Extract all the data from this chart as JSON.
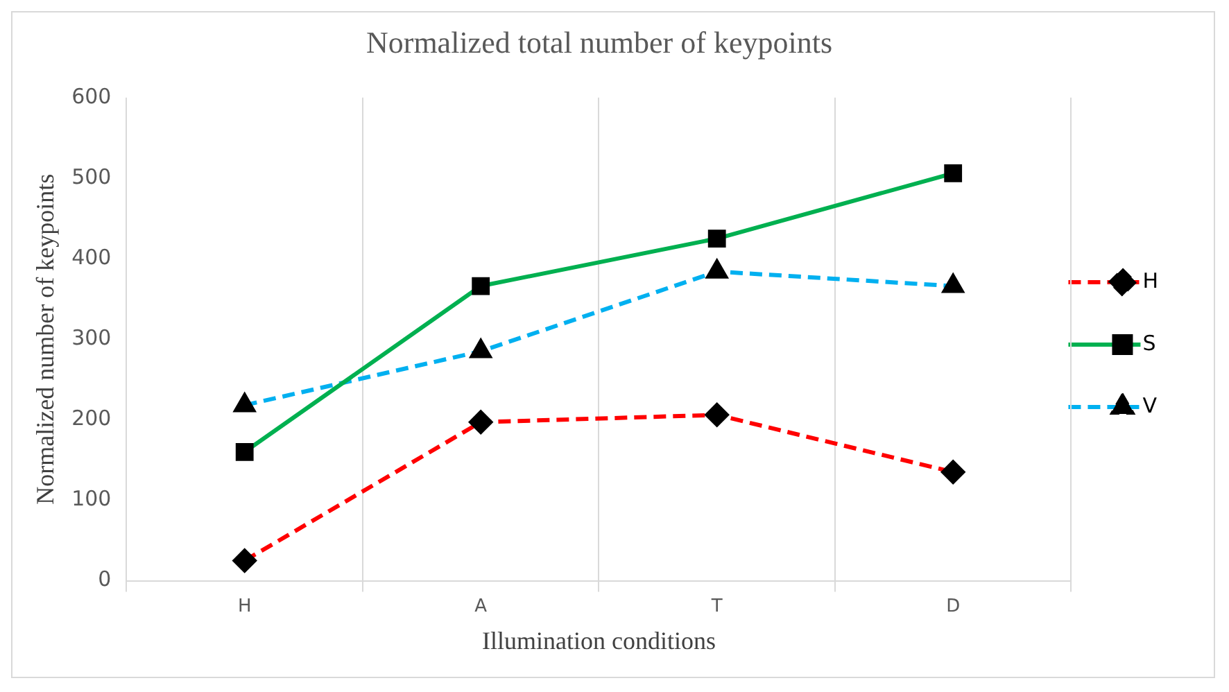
{
  "chart_data": {
    "type": "line",
    "title": "Normalized total number of keypoints",
    "xlabel": "Illumination conditions",
    "ylabel": "Normalized number of keypoints",
    "categories": [
      "H",
      "A",
      "T",
      "D"
    ],
    "series": [
      {
        "name": "H",
        "color": "#ff0000",
        "values": [
          25,
          197,
          206,
          135
        ],
        "marker": "diamond",
        "line_style": "dashed"
      },
      {
        "name": "S",
        "color": "#00b050",
        "values": [
          160,
          366,
          425,
          506
        ],
        "marker": "square",
        "line_style": "solid"
      },
      {
        "name": "V",
        "color": "#00b0f0",
        "values": [
          218,
          285,
          384,
          366
        ],
        "marker": "triangle",
        "line_style": "dashed"
      }
    ],
    "ylim": [
      0,
      600
    ],
    "yticks": [
      0,
      100,
      200,
      300,
      400,
      500,
      600
    ],
    "grid": "x",
    "legend": "right"
  }
}
